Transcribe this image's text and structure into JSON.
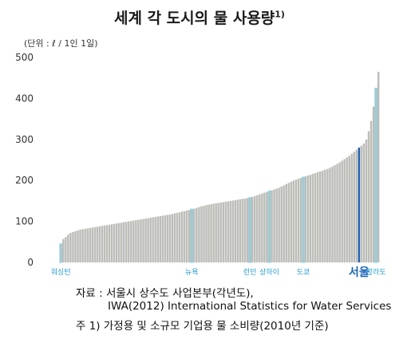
{
  "chart_data": {
    "type": "bar",
    "title": "세계 각 도시의 물 사용량",
    "title_superscript": "1)",
    "unit_label": "(단위 : ℓ / 1인 1일)",
    "ylim": [
      0,
      500
    ],
    "yticks": [
      "0",
      "100",
      "200",
      "300",
      "400",
      "500"
    ],
    "grid": false,
    "bar_color": "#bdbdb9",
    "highlight_outline_color": "#8fd3e6",
    "seoul_color": "#1f5fae",
    "label_color": "#2a9fd0",
    "seoul_label_color": "#1b63b8",
    "values": [
      45,
      57,
      62,
      68,
      72,
      74,
      76,
      78,
      80,
      81,
      82,
      83,
      84,
      85,
      86,
      87,
      88,
      89,
      90,
      91,
      92,
      93,
      94,
      95,
      96,
      97,
      98,
      99,
      100,
      101,
      102,
      103,
      104,
      105,
      106,
      107,
      108,
      109,
      110,
      111,
      112,
      113,
      114,
      115,
      116,
      117,
      118,
      120,
      121,
      122,
      124,
      125,
      127,
      128,
      130,
      131,
      133,
      135,
      137,
      138,
      140,
      141,
      142,
      143,
      144,
      145,
      146,
      147,
      148,
      149,
      150,
      151,
      152,
      153,
      154,
      155,
      156,
      157,
      158,
      160,
      162,
      164,
      166,
      168,
      170,
      172,
      174,
      176,
      178,
      180,
      182,
      185,
      188,
      191,
      194,
      197,
      200,
      202,
      204,
      206,
      208,
      210,
      212,
      214,
      216,
      218,
      220,
      222,
      224,
      226,
      228,
      231,
      234,
      237,
      240,
      244,
      248,
      252,
      256,
      260,
      265,
      270,
      275,
      280,
      285,
      290,
      300,
      320,
      345,
      380,
      425,
      465
    ],
    "labeled_cities": [
      {
        "label": "워싱턴",
        "index": 0
      },
      {
        "label": "뉴욕",
        "index": 54
      },
      {
        "label": "런던",
        "index": 78
      },
      {
        "label": "상하이",
        "index": 86
      },
      {
        "label": "도쿄",
        "index": 100
      },
      {
        "label": "서울",
        "index": 123,
        "emphasis": true
      },
      {
        "label": "할라도",
        "index": 130
      }
    ]
  },
  "source": {
    "line1": "자료 : 서울시 상수도 사업본부(각년도),",
    "line2": "IWA(2012) International Statistics for Water Services",
    "line3": "주  1) 가정용 및 소규모 기업용 물 소비량(2010년 기준)"
  }
}
